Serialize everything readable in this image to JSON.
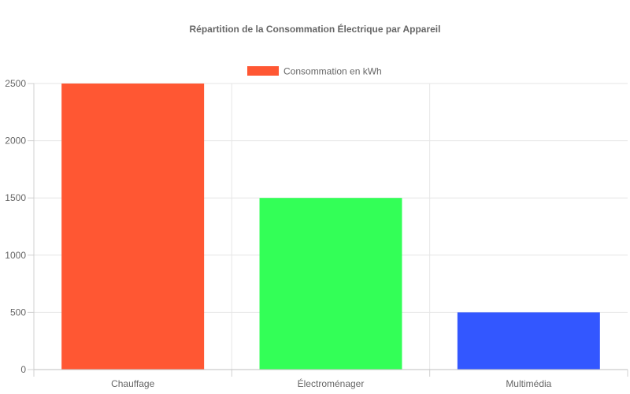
{
  "chart_data": {
    "type": "bar",
    "title": "Répartition de la Consommation Électrique par Appareil",
    "categories": [
      "Chauffage",
      "Électroménager",
      "Multimédia"
    ],
    "series": [
      {
        "name": "Consommation en kWh",
        "values": [
          2500,
          1500,
          500
        ],
        "colors": [
          "#FF5733",
          "#33FF57",
          "#3357FF"
        ]
      }
    ],
    "ylim": [
      0,
      2500
    ],
    "yticks": [
      0,
      500,
      1000,
      1500,
      2000,
      2500
    ],
    "grid": true,
    "legend_position": "top"
  }
}
